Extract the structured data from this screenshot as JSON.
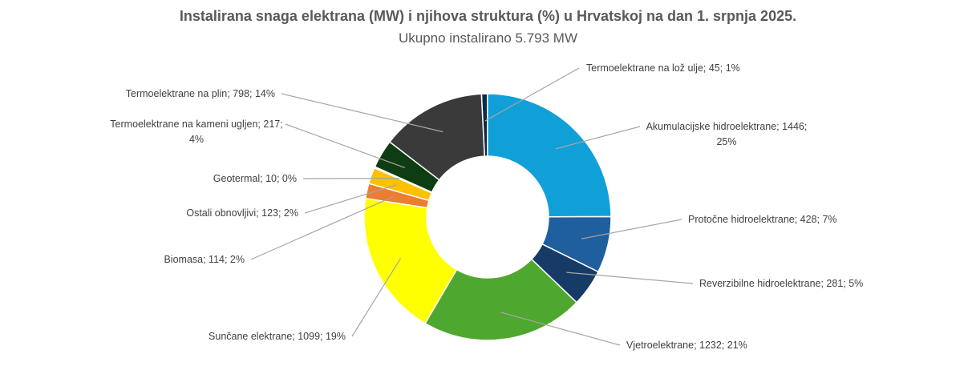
{
  "chart_data": {
    "type": "pie",
    "variant": "doughnut",
    "title": "Instalirana snaga elektrana (MW) i njihova struktura (%) u Hrvatskoj na dan 1. srpnja 2025.",
    "subtitle": "Ukupno instalirano 5.793 MW",
    "legend": "none",
    "slices": [
      {
        "name": "Termoelektrane na lož ulje",
        "value": 45,
        "percent": 1,
        "color": "#0d2a4a",
        "label_lines": [
          "Termoelektrane na lož ulje; 45; 1%"
        ]
      },
      {
        "name": "Akumulacijske hidroelektrane",
        "value": 1446,
        "percent": 25,
        "color": "#119fd8",
        "label_lines": [
          "Akumulacijske hidroelektrane; 1446;",
          "25%"
        ]
      },
      {
        "name": "Protočne hidroelektrane",
        "value": 428,
        "percent": 7,
        "color": "#1f5f9e",
        "label_lines": [
          "Protočne hidroelektrane; 428; 7%"
        ]
      },
      {
        "name": "Reverzibilne hidroelektrane",
        "value": 281,
        "percent": 5,
        "color": "#163b66",
        "label_lines": [
          "Reverzibilne hidroelektrane; 281; 5%"
        ]
      },
      {
        "name": "Vjetroelektrane",
        "value": 1232,
        "percent": 21,
        "color": "#4ea72e",
        "label_lines": [
          "Vjetroelektrane; 1232; 21%"
        ]
      },
      {
        "name": "Sunčane elektrane",
        "value": 1099,
        "percent": 19,
        "color": "#ffff00",
        "label_lines": [
          "Sunčane elektrane; 1099; 19%"
        ]
      },
      {
        "name": "Biomasa",
        "value": 114,
        "percent": 2,
        "color": "#ed7d31",
        "label_lines": [
          "Biomasa; 114; 2%"
        ]
      },
      {
        "name": "Ostali obnovljivi",
        "value": 123,
        "percent": 2,
        "color": "#ffc000",
        "label_lines": [
          "Ostali obnovljivi; 123; 2%"
        ]
      },
      {
        "name": "Geotermal",
        "value": 10,
        "percent": 0,
        "color": "#ffd966",
        "label_lines": [
          "Geotermal; 10; 0%"
        ]
      },
      {
        "name": "Termoelektrane na kameni ugljen",
        "value": 217,
        "percent": 4,
        "color": "#0f3d12",
        "label_lines": [
          "Termoelektrane na kameni ugljen; 217;",
          "4%"
        ]
      },
      {
        "name": "Termoelektrane na plin",
        "value": 798,
        "percent": 14,
        "color": "#3a3a3a",
        "label_lines": [
          "Termoelektrane na plin; 798; 14%"
        ]
      }
    ]
  }
}
